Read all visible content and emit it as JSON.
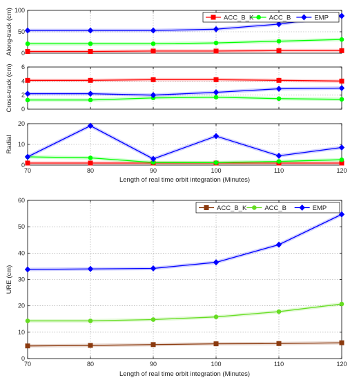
{
  "chart_data": [
    {
      "type": "line",
      "title": "",
      "xlabel": "",
      "ylabel": "Along-track (cm)",
      "x": [
        70,
        80,
        90,
        100,
        110,
        120
      ],
      "xlim": [
        70,
        120
      ],
      "ylim": [
        0,
        100
      ],
      "xticks": [],
      "yticks": [
        "0",
        "50",
        "100"
      ],
      "grid": true,
      "legend": "top-right",
      "series": [
        {
          "name": "ACC_B_K",
          "color": "#ff0000",
          "marker": "square",
          "values": [
            4,
            4,
            5,
            5,
            6,
            6
          ]
        },
        {
          "name": "ACC_B",
          "color": "#00ff00",
          "marker": "circle",
          "values": [
            22,
            22,
            22,
            24,
            28,
            32
          ]
        },
        {
          "name": "EMP",
          "color": "#0000ff",
          "marker": "diamond",
          "values": [
            53,
            53,
            53,
            56,
            68,
            87
          ]
        }
      ]
    },
    {
      "type": "line",
      "title": "",
      "xlabel": "",
      "ylabel": "Cross-track (cm)",
      "x": [
        70,
        80,
        90,
        100,
        110,
        120
      ],
      "xlim": [
        70,
        120
      ],
      "ylim": [
        0,
        6
      ],
      "xticks": [],
      "yticks": [
        "0",
        "2",
        "4",
        "6"
      ],
      "grid": true,
      "legend": "none",
      "series": [
        {
          "name": "ACC_B_K",
          "color": "#ff0000",
          "marker": "square",
          "values": [
            4.1,
            4.1,
            4.2,
            4.2,
            4.1,
            4.0
          ]
        },
        {
          "name": "ACC_B",
          "color": "#00ff00",
          "marker": "circle",
          "values": [
            1.3,
            1.3,
            1.6,
            1.7,
            1.5,
            1.4
          ]
        },
        {
          "name": "EMP",
          "color": "#0000ff",
          "marker": "diamond",
          "values": [
            2.2,
            2.2,
            2.0,
            2.4,
            2.9,
            3.0
          ]
        }
      ]
    },
    {
      "type": "line",
      "title": "",
      "xlabel": "Length of real time orbit integration (Minutes)",
      "ylabel": "Radial",
      "x": [
        70,
        80,
        90,
        100,
        110,
        120
      ],
      "xlim": [
        70,
        120
      ],
      "ylim": [
        0,
        20
      ],
      "xticks": [
        "70",
        "80",
        "90",
        "100",
        "110",
        "120"
      ],
      "yticks": [
        "0",
        "10",
        "20"
      ],
      "grid": true,
      "legend": "none",
      "series": [
        {
          "name": "ACC_B_K",
          "color": "#ff0000",
          "marker": "square",
          "values": [
            1,
            1,
            1,
            1,
            1,
            1
          ]
        },
        {
          "name": "ACC_B",
          "color": "#00ff00",
          "marker": "circle",
          "values": [
            4,
            3.5,
            1.3,
            1.2,
            1.8,
            2.6
          ]
        },
        {
          "name": "EMP",
          "color": "#0000ff",
          "marker": "diamond",
          "values": [
            4,
            19,
            3,
            14,
            4.5,
            8.5
          ]
        }
      ]
    },
    {
      "type": "line",
      "title": "",
      "xlabel": "Length of real time orbit integration (Minutes)",
      "ylabel": "URE (cm)",
      "x": [
        70,
        80,
        90,
        100,
        110,
        120
      ],
      "xlim": [
        70,
        120
      ],
      "ylim": [
        0,
        60
      ],
      "xticks": [
        "70",
        "80",
        "90",
        "100",
        "110",
        "120"
      ],
      "yticks": [
        "0",
        "10",
        "20",
        "30",
        "40",
        "50",
        "60"
      ],
      "grid": true,
      "legend": "top-right",
      "series": [
        {
          "name": "ACC_B_K",
          "color": "#8b3a0e",
          "marker": "square",
          "values": [
            4.8,
            5.0,
            5.3,
            5.6,
            5.7,
            6.0
          ]
        },
        {
          "name": "ACC_B",
          "color": "#66dd22",
          "marker": "circle",
          "values": [
            14.3,
            14.3,
            14.8,
            15.8,
            17.8,
            20.7
          ]
        },
        {
          "name": "EMP",
          "color": "#0000ff",
          "marker": "diamond",
          "values": [
            33.8,
            34.0,
            34.2,
            36.5,
            43.2,
            54.7
          ]
        }
      ]
    }
  ]
}
